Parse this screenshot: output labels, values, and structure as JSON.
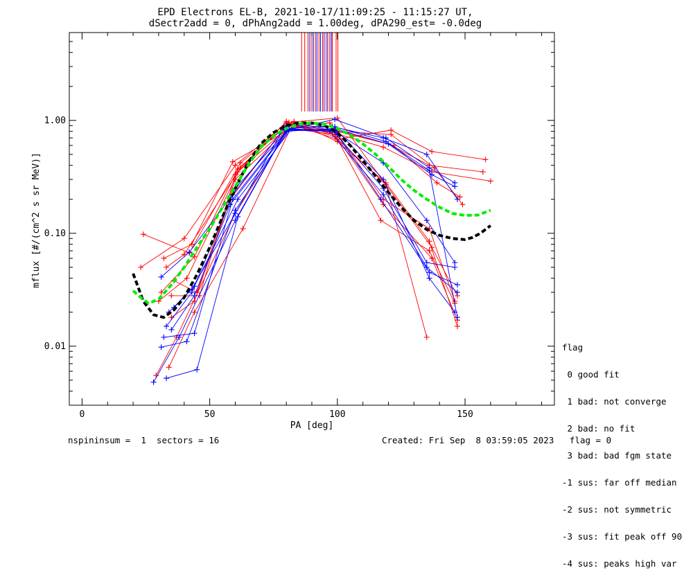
{
  "title_line1": "EPD Electrons EL-B, 2021-10-17/11:09:25 - 11:15:27 UT,",
  "title_line2": "dSectr2add = 0, dPhAng2add = 1.00deg, dPA290_est=  -0.0deg",
  "footer": {
    "left": "nspininsum =  1  sectors = 16",
    "right": "Created: Fri Sep  8 03:59:05 2023   flag = 0"
  },
  "legend": {
    "title": "flag",
    "entries": [
      " 0 good fit",
      " 1 bad: not converge",
      " 2 bad: no fit",
      " 3 bad: bad fgm state",
      "-1 sus: far off median",
      "-2 sus: not symmetric",
      "-3 sus: fit peak off 90",
      "-4 sus: peaks high var"
    ]
  },
  "colors": {
    "red": "#ff0000",
    "blue": "#0000ff",
    "green": "#00ee00",
    "black": "#000000"
  },
  "chart_data": {
    "type": "line",
    "xlabel": "PA [deg]",
    "ylabel": "mflux [#/(cm^2 s sr MeV)]",
    "xlim": [
      -5,
      185
    ],
    "ylim": [
      0.003,
      6.0
    ],
    "yscale": "log",
    "x_ticks": [
      0,
      50,
      100,
      150
    ],
    "x_tick_labels": [
      "0",
      "50",
      "100",
      "150"
    ],
    "y_ticks": [
      0.01,
      0.1,
      1.0
    ],
    "y_tick_labels": [
      "0.01",
      "0.10",
      "1.00"
    ],
    "series": [
      {
        "color": "black",
        "dashed": true,
        "x": [
          20,
          24,
          28,
          32,
          36,
          40,
          45,
          50,
          55,
          60,
          65,
          70,
          75,
          80,
          85,
          90,
          95,
          100,
          105,
          110,
          115,
          120,
          125,
          130,
          135,
          140,
          145,
          150,
          153,
          156,
          160
        ],
        "y": [
          0.044,
          0.025,
          0.019,
          0.018,
          0.021,
          0.027,
          0.043,
          0.075,
          0.14,
          0.25,
          0.42,
          0.62,
          0.78,
          0.9,
          0.95,
          0.95,
          0.9,
          0.78,
          0.6,
          0.44,
          0.32,
          0.23,
          0.17,
          0.13,
          0.108,
          0.096,
          0.09,
          0.088,
          0.092,
          0.1,
          0.117
        ]
      },
      {
        "color": "green",
        "dashed": true,
        "x": [
          20,
          23,
          26,
          30,
          35,
          40,
          45,
          50,
          55,
          60,
          65,
          70,
          75,
          80,
          85,
          90,
          95,
          100,
          105,
          110,
          115,
          120,
          125,
          130,
          135,
          140,
          145,
          150,
          155,
          160
        ],
        "y": [
          0.031,
          0.027,
          0.024,
          0.026,
          0.035,
          0.05,
          0.075,
          0.11,
          0.17,
          0.26,
          0.4,
          0.58,
          0.73,
          0.85,
          0.93,
          0.95,
          0.92,
          0.85,
          0.74,
          0.62,
          0.5,
          0.39,
          0.3,
          0.24,
          0.2,
          0.17,
          0.15,
          0.144,
          0.145,
          0.16
        ]
      }
    ],
    "sweeps": [
      {
        "color": "red",
        "points": [
          [
            24,
            0.098
          ],
          [
            42,
            0.067
          ],
          [
            62,
            0.42
          ],
          [
            81,
            0.93
          ],
          [
            99,
            0.72
          ],
          [
            119,
            0.27
          ],
          [
            135,
            0.012
          ]
        ]
      },
      {
        "color": "red",
        "points": [
          [
            23,
            0.05
          ],
          [
            40,
            0.09
          ],
          [
            60,
            0.4
          ],
          [
            80,
            0.95
          ],
          [
            100,
            0.68
          ],
          [
            121,
            0.82
          ],
          [
            137,
            0.53
          ],
          [
            158,
            0.45
          ]
        ]
      },
      {
        "color": "red",
        "points": [
          [
            31,
            0.03
          ],
          [
            44,
            0.062
          ],
          [
            61,
            0.37
          ],
          [
            80,
            0.9
          ],
          [
            99,
            0.82
          ],
          [
            120,
            0.62
          ],
          [
            136,
            0.4
          ],
          [
            157,
            0.35
          ]
        ]
      },
      {
        "color": "red",
        "points": [
          [
            32,
            0.06
          ],
          [
            43,
            0.08
          ],
          [
            59,
            0.43
          ],
          [
            83,
            0.88
          ],
          [
            98,
            0.78
          ],
          [
            118,
            0.58
          ],
          [
            137,
            0.35
          ],
          [
            160,
            0.29
          ]
        ]
      },
      {
        "color": "red",
        "points": [
          [
            30,
            0.025
          ],
          [
            41,
            0.04
          ],
          [
            62,
            0.38
          ],
          [
            81,
            0.96
          ],
          [
            100,
            1.05
          ],
          [
            119,
            0.27
          ],
          [
            137,
            0.075
          ],
          [
            147,
            0.028
          ]
        ]
      },
      {
        "color": "red",
        "points": [
          [
            36,
            0.038
          ],
          [
            45,
            0.03
          ],
          [
            60,
            0.3
          ],
          [
            81,
            0.85
          ],
          [
            99,
            0.75
          ],
          [
            117,
            0.13
          ],
          [
            136,
            0.07
          ],
          [
            146,
            0.024
          ]
        ]
      },
      {
        "color": "red",
        "points": [
          [
            35,
            0.018
          ],
          [
            44,
            0.025
          ],
          [
            58,
            0.2
          ],
          [
            80,
            0.9
          ],
          [
            97,
            0.95
          ],
          [
            118,
            0.2
          ],
          [
            136,
            0.11
          ],
          [
            146,
            0.025
          ]
        ]
      },
      {
        "color": "red",
        "points": [
          [
            29,
            0.0055
          ],
          [
            37,
            0.012
          ],
          [
            60,
            0.15
          ],
          [
            82,
            0.93
          ],
          [
            99,
            0.75
          ],
          [
            118,
            0.18
          ],
          [
            137,
            0.06
          ],
          [
            147,
            0.017
          ]
        ]
      },
      {
        "color": "red",
        "points": [
          [
            34,
            0.0065
          ],
          [
            44,
            0.02
          ],
          [
            63,
            0.11
          ],
          [
            83,
            0.98
          ],
          [
            100,
            0.65
          ],
          [
            119,
            0.28
          ],
          [
            136,
            0.085
          ],
          [
            147,
            0.015
          ]
        ]
      },
      {
        "color": "red",
        "points": [
          [
            33,
            0.05
          ],
          [
            40,
            0.065
          ],
          [
            61,
            0.35
          ],
          [
            82,
            0.92
          ],
          [
            99,
            0.8
          ],
          [
            121,
            0.75
          ],
          [
            138,
            0.38
          ],
          [
            149,
            0.18
          ]
        ]
      },
      {
        "color": "red",
        "points": [
          [
            35,
            0.028
          ],
          [
            46,
            0.028
          ],
          [
            60,
            0.33
          ],
          [
            80,
            0.98
          ],
          [
            100,
            0.8
          ],
          [
            122,
            0.6
          ],
          [
            139,
            0.28
          ],
          [
            148,
            0.21
          ]
        ]
      },
      {
        "color": "blue",
        "points": [
          [
            28,
            0.0048
          ],
          [
            38,
            0.012
          ],
          [
            60,
            0.13
          ],
          [
            80,
            0.83
          ],
          [
            99,
            0.8
          ],
          [
            118,
            0.42
          ],
          [
            135,
            0.13
          ],
          [
            146,
            0.055
          ]
        ]
      },
      {
        "color": "blue",
        "points": [
          [
            33,
            0.0052
          ],
          [
            45,
            0.0062
          ],
          [
            61,
            0.14
          ],
          [
            80,
            0.82
          ],
          [
            98,
            0.82
          ],
          [
            118,
            0.25
          ],
          [
            135,
            0.055
          ],
          [
            146,
            0.05
          ]
        ]
      },
      {
        "color": "blue",
        "points": [
          [
            31,
            0.0098
          ],
          [
            41,
            0.011
          ],
          [
            60,
            0.16
          ],
          [
            81,
            0.82
          ],
          [
            99,
            0.8
          ],
          [
            117,
            0.2
          ],
          [
            136,
            0.045
          ],
          [
            147,
            0.035
          ]
        ]
      },
      {
        "color": "blue",
        "points": [
          [
            32,
            0.012
          ],
          [
            44,
            0.013
          ],
          [
            59,
            0.2
          ],
          [
            81,
            0.85
          ],
          [
            97,
            0.8
          ],
          [
            118,
            0.22
          ],
          [
            135,
            0.05
          ],
          [
            147,
            0.03
          ]
        ]
      },
      {
        "color": "blue",
        "points": [
          [
            33,
            0.015
          ],
          [
            43,
            0.03
          ],
          [
            60,
            0.25
          ],
          [
            80,
            0.8
          ],
          [
            99,
            0.85
          ],
          [
            118,
            0.3
          ],
          [
            136,
            0.04
          ],
          [
            146,
            0.02
          ]
        ]
      },
      {
        "color": "blue",
        "points": [
          [
            34,
            0.02
          ],
          [
            44,
            0.034
          ],
          [
            61,
            0.2
          ],
          [
            82,
            0.84
          ],
          [
            99,
            1.02
          ],
          [
            119,
            0.7
          ],
          [
            136,
            0.38
          ],
          [
            146,
            0.28
          ]
        ]
      },
      {
        "color": "blue",
        "points": [
          [
            31,
            0.041
          ],
          [
            42,
            0.068
          ],
          [
            59,
            0.22
          ],
          [
            80,
            0.9
          ],
          [
            98,
            0.88
          ],
          [
            118,
            0.7
          ],
          [
            135,
            0.5
          ],
          [
            147,
            0.2
          ]
        ]
      },
      {
        "color": "blue",
        "points": [
          [
            35,
            0.014
          ],
          [
            44,
            0.028
          ],
          [
            58,
            0.18
          ],
          [
            81,
            0.83
          ],
          [
            100,
            0.83
          ],
          [
            120,
            0.62
          ],
          [
            137,
            0.33
          ],
          [
            146,
            0.26
          ]
        ]
      },
      {
        "color": "blue",
        "points": [
          [
            36,
            0.022
          ],
          [
            43,
            0.032
          ],
          [
            60,
            0.15
          ],
          [
            79,
            0.85
          ],
          [
            99,
            0.88
          ],
          [
            119,
            0.65
          ],
          [
            136,
            0.36
          ],
          [
            147,
            0.018
          ]
        ]
      }
    ],
    "peak_markers": {
      "red_x": [
        86.0,
        87.2,
        88.5,
        90.0,
        91.4,
        92.8,
        94.2,
        95.6,
        97.0,
        98.0,
        99.5,
        100.2
      ],
      "blue_x": [
        89.2,
        90.6,
        92.0,
        93.4,
        94.8,
        96.2,
        97.6
      ],
      "y_top": 6.0,
      "y_bottom": 1.2
    }
  }
}
